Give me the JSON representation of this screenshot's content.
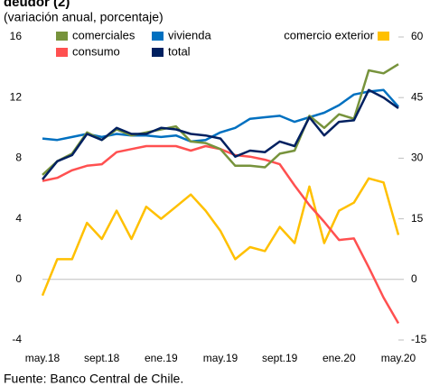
{
  "chart_data": {
    "type": "line",
    "title": "deudor (2)",
    "subtitle": "(variación anual, porcentaje)",
    "source": "Fuente: Banco Central de Chile.",
    "categories": [
      "may.18",
      null,
      null,
      null,
      "sept.18",
      null,
      null,
      null,
      "ene.19",
      null,
      null,
      null,
      "may.19",
      null,
      null,
      null,
      "sept.19",
      null,
      null,
      null,
      "ene.20",
      null,
      null,
      null,
      "may.20"
    ],
    "ylim": [
      -4,
      16
    ],
    "yticks": [
      -4,
      0,
      4,
      8,
      12,
      16
    ],
    "y2lim": [
      -15,
      60
    ],
    "y2ticks": [
      -15,
      0,
      15,
      30,
      45,
      60
    ],
    "series": [
      {
        "name": "comerciales",
        "color": "#77933c",
        "values": [
          6.9,
          7.8,
          8.3,
          9.7,
          9.2,
          9.9,
          9.5,
          9.7,
          9.9,
          10.1,
          9.1,
          9.0,
          8.6,
          7.5,
          7.5,
          7.4,
          8.3,
          8.5,
          10.8,
          10.0,
          10.9,
          10.6,
          13.8,
          13.6,
          14.2
        ]
      },
      {
        "name": "vivienda",
        "color": "#0070c0",
        "values": [
          9.3,
          9.2,
          9.4,
          9.6,
          9.4,
          9.6,
          9.5,
          9.5,
          9.4,
          9.5,
          9.1,
          9.2,
          9.7,
          10.0,
          10.6,
          10.7,
          10.8,
          10.4,
          10.7,
          11.0,
          11.5,
          12.2,
          12.4,
          12.5,
          11.4
        ]
      },
      {
        "name": "comercio exterior",
        "color": "#ffc000",
        "axis": "y2",
        "values": [
          -4,
          5,
          5,
          14,
          10,
          17,
          10,
          18,
          15,
          18,
          21,
          17,
          12,
          5,
          8,
          7,
          13,
          9,
          23,
          9,
          17,
          19,
          25,
          24,
          11
        ]
      },
      {
        "name": "consumo",
        "color": "#ff5050",
        "values": [
          6.5,
          6.7,
          7.2,
          7.5,
          7.6,
          8.4,
          8.6,
          8.8,
          8.8,
          8.8,
          8.5,
          8.8,
          8.6,
          8.2,
          8.1,
          7.9,
          7.6,
          6.2,
          4.9,
          3.8,
          2.6,
          2.7,
          0.8,
          -1.2,
          -2.9
        ]
      },
      {
        "name": "total",
        "color": "#002060",
        "values": [
          6.6,
          7.8,
          8.2,
          9.6,
          9.2,
          10.0,
          9.6,
          9.6,
          10.0,
          9.9,
          9.6,
          9.5,
          9.3,
          8.1,
          8.5,
          8.4,
          9.1,
          8.8,
          10.7,
          9.5,
          10.4,
          10.5,
          12.5,
          12.0,
          11.3
        ]
      }
    ]
  }
}
